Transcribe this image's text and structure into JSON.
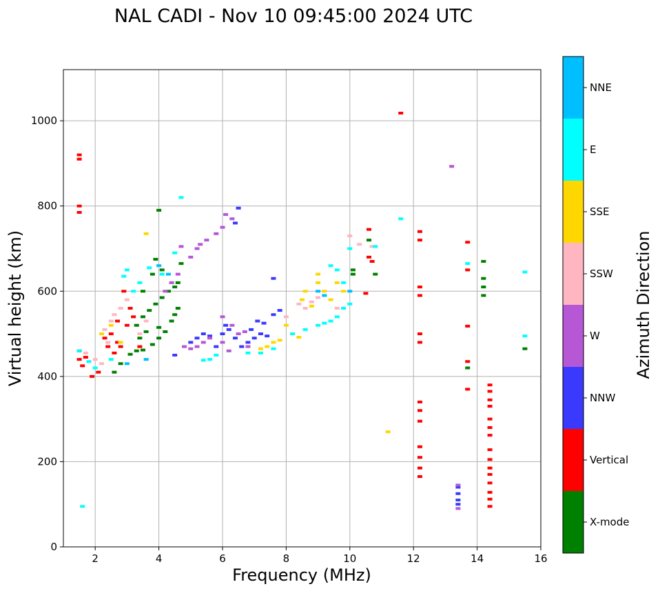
{
  "chart_data": {
    "type": "scatter",
    "title": "NAL CADI - Nov 10 09:45:00 2024 UTC",
    "xlabel": "Frequency (MHz)",
    "ylabel": "Virtual height (km)",
    "xlim": [
      1.0,
      16.0
    ],
    "ylim": [
      0,
      1120
    ],
    "xticks": [
      2,
      4,
      6,
      8,
      10,
      12,
      14,
      16
    ],
    "yticks": [
      0,
      200,
      400,
      600,
      800,
      1000
    ],
    "grid": true,
    "colorbar": {
      "label": "Azimuth Direction",
      "categories": [
        "X-mode",
        "Vertical",
        "NNW",
        "W",
        "SSW",
        "SSE",
        "E",
        "NNE"
      ],
      "colors": [
        "#008000",
        "#ff0000",
        "#3a3aff",
        "#b657d6",
        "#ffb6c1",
        "#ffd700",
        "#00ffff",
        "#00bfff"
      ]
    },
    "series": [
      {
        "name": "X-mode",
        "points": [
          [
            2.6,
            410
          ],
          [
            2.8,
            430
          ],
          [
            3.1,
            452
          ],
          [
            3.3,
            460
          ],
          [
            3.5,
            462
          ],
          [
            3.8,
            475
          ],
          [
            4.0,
            490
          ],
          [
            4.2,
            505
          ],
          [
            4.4,
            530
          ],
          [
            4.5,
            545
          ],
          [
            4.6,
            560
          ],
          [
            3.3,
            520
          ],
          [
            3.5,
            540
          ],
          [
            3.7,
            555
          ],
          [
            3.9,
            570
          ],
          [
            4.1,
            585
          ],
          [
            4.3,
            600
          ],
          [
            4.5,
            610
          ],
          [
            4.6,
            620
          ],
          [
            3.4,
            490
          ],
          [
            3.6,
            505
          ],
          [
            4.0,
            515
          ],
          [
            3.8,
            640
          ],
          [
            3.9,
            675
          ],
          [
            4.0,
            790
          ],
          [
            4.1,
            650
          ],
          [
            3.5,
            600
          ],
          [
            4.7,
            665
          ],
          [
            10.1,
            640
          ],
          [
            10.1,
            650
          ],
          [
            10.6,
            720
          ],
          [
            10.8,
            640
          ],
          [
            13.7,
            420
          ],
          [
            14.2,
            670
          ],
          [
            14.2,
            630
          ],
          [
            14.2,
            610
          ],
          [
            14.2,
            590
          ],
          [
            15.5,
            465
          ]
        ]
      },
      {
        "name": "Vertical",
        "points": [
          [
            1.5,
            920
          ],
          [
            1.5,
            910
          ],
          [
            1.5,
            800
          ],
          [
            1.5,
            785
          ],
          [
            1.5,
            460
          ],
          [
            1.5,
            440
          ],
          [
            1.6,
            425
          ],
          [
            1.7,
            445
          ],
          [
            1.9,
            400
          ],
          [
            2.1,
            410
          ],
          [
            2.4,
            470
          ],
          [
            2.3,
            490
          ],
          [
            2.5,
            500
          ],
          [
            2.7,
            480
          ],
          [
            2.8,
            470
          ],
          [
            3.0,
            520
          ],
          [
            3.2,
            540
          ],
          [
            3.4,
            470
          ],
          [
            2.9,
            600
          ],
          [
            3.1,
            560
          ],
          [
            2.7,
            530
          ],
          [
            2.6,
            455
          ],
          [
            10.5,
            595
          ],
          [
            10.6,
            745
          ],
          [
            10.6,
            680
          ],
          [
            10.7,
            670
          ],
          [
            11.6,
            1018
          ],
          [
            12.2,
            740
          ],
          [
            12.2,
            720
          ],
          [
            12.2,
            610
          ],
          [
            12.2,
            590
          ],
          [
            12.2,
            500
          ],
          [
            12.2,
            480
          ],
          [
            12.2,
            340
          ],
          [
            12.2,
            320
          ],
          [
            12.2,
            295
          ],
          [
            12.2,
            235
          ],
          [
            12.2,
            210
          ],
          [
            12.2,
            185
          ],
          [
            12.2,
            165
          ],
          [
            13.7,
            715
          ],
          [
            13.7,
            650
          ],
          [
            13.7,
            518
          ],
          [
            13.7,
            435
          ],
          [
            13.7,
            370
          ],
          [
            14.4,
            380
          ],
          [
            14.4,
            365
          ],
          [
            14.4,
            345
          ],
          [
            14.4,
            330
          ],
          [
            14.4,
            300
          ],
          [
            14.4,
            280
          ],
          [
            14.4,
            262
          ],
          [
            14.4,
            228
          ],
          [
            14.4,
            205
          ],
          [
            14.4,
            185
          ],
          [
            14.4,
            170
          ],
          [
            14.4,
            150
          ],
          [
            14.4,
            128
          ],
          [
            14.4,
            112
          ],
          [
            14.4,
            95
          ]
        ]
      },
      {
        "name": "NNW",
        "points": [
          [
            5.0,
            480
          ],
          [
            5.2,
            490
          ],
          [
            5.4,
            500
          ],
          [
            5.6,
            495
          ],
          [
            5.8,
            470
          ],
          [
            6.0,
            500
          ],
          [
            6.2,
            510
          ],
          [
            6.4,
            490
          ],
          [
            6.6,
            470
          ],
          [
            6.8,
            480
          ],
          [
            7.0,
            490
          ],
          [
            7.2,
            500
          ],
          [
            7.4,
            495
          ],
          [
            6.5,
            795
          ],
          [
            6.4,
            760
          ],
          [
            6.1,
            520
          ],
          [
            6.9,
            510
          ],
          [
            7.1,
            530
          ],
          [
            7.3,
            525
          ],
          [
            7.6,
            545
          ],
          [
            7.8,
            555
          ],
          [
            7.6,
            630
          ],
          [
            4.5,
            450
          ],
          [
            13.4,
            140
          ],
          [
            13.4,
            125
          ],
          [
            13.4,
            110
          ],
          [
            13.4,
            100
          ]
        ]
      },
      {
        "name": "W",
        "points": [
          [
            4.8,
            470
          ],
          [
            5.0,
            465
          ],
          [
            5.2,
            470
          ],
          [
            5.4,
            480
          ],
          [
            5.6,
            490
          ],
          [
            6.0,
            480
          ],
          [
            6.2,
            460
          ],
          [
            6.3,
            520
          ],
          [
            6.5,
            500
          ],
          [
            6.7,
            505
          ],
          [
            6.8,
            470
          ],
          [
            5.0,
            680
          ],
          [
            5.2,
            700
          ],
          [
            5.3,
            710
          ],
          [
            5.5,
            720
          ],
          [
            5.8,
            735
          ],
          [
            6.0,
            750
          ],
          [
            6.1,
            780
          ],
          [
            6.3,
            770
          ],
          [
            4.4,
            620
          ],
          [
            4.6,
            640
          ],
          [
            4.7,
            705
          ],
          [
            6.0,
            540
          ],
          [
            4.2,
            600
          ],
          [
            13.2,
            893
          ],
          [
            13.4,
            145
          ],
          [
            13.4,
            90
          ]
        ]
      },
      {
        "name": "SSW",
        "points": [
          [
            1.7,
            455
          ],
          [
            2.0,
            440
          ],
          [
            2.3,
            510
          ],
          [
            2.5,
            530
          ],
          [
            2.6,
            545
          ],
          [
            2.8,
            560
          ],
          [
            3.0,
            580
          ],
          [
            2.4,
            480
          ],
          [
            2.2,
            430
          ],
          [
            3.4,
            500
          ],
          [
            3.6,
            530
          ],
          [
            8.0,
            540
          ],
          [
            8.4,
            570
          ],
          [
            8.6,
            560
          ],
          [
            8.8,
            575
          ],
          [
            9.0,
            585
          ],
          [
            10.0,
            730
          ],
          [
            10.3,
            710
          ],
          [
            10.7,
            705
          ],
          [
            9.6,
            560
          ]
        ]
      },
      {
        "name": "SSE",
        "points": [
          [
            2.2,
            500
          ],
          [
            2.5,
            520
          ],
          [
            2.8,
            480
          ],
          [
            3.6,
            735
          ],
          [
            7.2,
            465
          ],
          [
            7.4,
            470
          ],
          [
            7.6,
            480
          ],
          [
            7.8,
            485
          ],
          [
            8.0,
            520
          ],
          [
            8.2,
            500
          ],
          [
            8.4,
            492
          ],
          [
            8.5,
            580
          ],
          [
            8.6,
            600
          ],
          [
            8.8,
            565
          ],
          [
            9.0,
            620
          ],
          [
            9.0,
            640
          ],
          [
            9.2,
            600
          ],
          [
            9.4,
            580
          ],
          [
            9.6,
            620
          ],
          [
            9.8,
            600
          ],
          [
            11.2,
            270
          ]
        ]
      },
      {
        "name": "E",
        "points": [
          [
            1.6,
            95
          ],
          [
            1.5,
            460
          ],
          [
            1.8,
            435
          ],
          [
            2.0,
            420
          ],
          [
            2.5,
            440
          ],
          [
            2.9,
            635
          ],
          [
            3.0,
            650
          ],
          [
            3.2,
            600
          ],
          [
            3.4,
            620
          ],
          [
            3.7,
            655
          ],
          [
            4.1,
            640
          ],
          [
            4.5,
            690
          ],
          [
            4.7,
            820
          ],
          [
            5.4,
            438
          ],
          [
            5.6,
            440
          ],
          [
            5.8,
            450
          ],
          [
            6.8,
            455
          ],
          [
            7.2,
            455
          ],
          [
            7.6,
            465
          ],
          [
            8.2,
            500
          ],
          [
            8.6,
            510
          ],
          [
            9.0,
            520
          ],
          [
            9.2,
            525
          ],
          [
            9.4,
            530
          ],
          [
            9.6,
            540
          ],
          [
            9.8,
            560
          ],
          [
            10.0,
            570
          ],
          [
            9.4,
            660
          ],
          [
            9.6,
            650
          ],
          [
            9.8,
            620
          ],
          [
            10.0,
            700
          ],
          [
            10.8,
            705
          ],
          [
            11.6,
            770
          ],
          [
            13.7,
            665
          ],
          [
            15.5,
            645
          ],
          [
            15.5,
            495
          ]
        ]
      },
      {
        "name": "NNE",
        "points": [
          [
            3.0,
            430
          ],
          [
            3.6,
            440
          ],
          [
            4.0,
            660
          ],
          [
            4.3,
            640
          ],
          [
            9.0,
            600
          ],
          [
            9.2,
            590
          ],
          [
            10.0,
            600
          ]
        ]
      }
    ]
  }
}
